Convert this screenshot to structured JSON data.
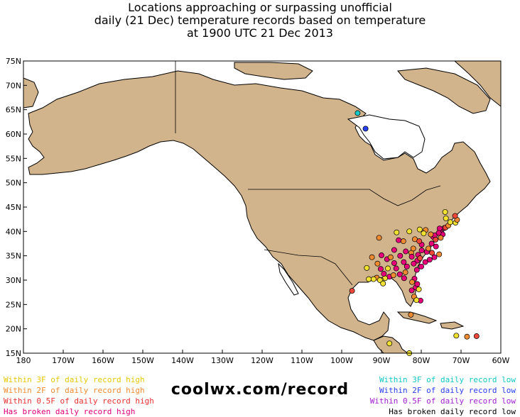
{
  "title": {
    "line1": "Locations approaching or surpassing unofficial",
    "line2": "daily (21 Dec) temperature records based on temperature",
    "line3": "at 1900 UTC 21 Dec 2013"
  },
  "map": {
    "lon_range": [
      -180,
      -60
    ],
    "lat_range": [
      15,
      75
    ],
    "x_ticks": [
      "180",
      "170W",
      "160W",
      "150W",
      "140W",
      "130W",
      "120W",
      "110W",
      "100W",
      "90W",
      "80W",
      "70W",
      "60W"
    ],
    "y_ticks": [
      "15N",
      "20N",
      "25N",
      "30N",
      "35N",
      "40N",
      "45N",
      "50N",
      "55N",
      "60N",
      "65N",
      "70N",
      "75N"
    ],
    "colors": {
      "land": "#d2b48c",
      "water": "#ffffff",
      "within_3f_high": "#f0e030",
      "within_2f_high": "#f08a30",
      "within_05f_high": "#f04838",
      "broken_high": "#e8007a",
      "within_3f_low": "#10c8c8",
      "within_2f_low": "#2840f0"
    },
    "stations": [
      {
        "lon": -96.0,
        "lat": 64.3,
        "cat": "within_3f_low"
      },
      {
        "lon": -94.0,
        "lat": 61.1,
        "cat": "within_2f_low"
      },
      {
        "lon": -82.4,
        "lat": 27.9,
        "cat": "broken_high"
      },
      {
        "lon": -80.2,
        "lat": 25.8,
        "cat": "broken_high"
      },
      {
        "lon": -81.4,
        "lat": 28.5,
        "cat": "broken_high"
      },
      {
        "lon": -81.0,
        "lat": 29.2,
        "cat": "broken_high"
      },
      {
        "lon": -81.7,
        "lat": 30.3,
        "cat": "broken_high"
      },
      {
        "lon": -84.3,
        "lat": 30.4,
        "cat": "broken_high"
      },
      {
        "lon": -82.3,
        "lat": 29.6,
        "cat": "within_2f_high"
      },
      {
        "lon": -80.6,
        "lat": 28.1,
        "cat": "within_3f_high"
      },
      {
        "lon": -81.8,
        "lat": 26.6,
        "cat": "within_2f_high"
      },
      {
        "lon": -81.1,
        "lat": 32.1,
        "cat": "broken_high"
      },
      {
        "lon": -80.0,
        "lat": 32.8,
        "cat": "broken_high"
      },
      {
        "lon": -79.0,
        "lat": 33.7,
        "cat": "broken_high"
      },
      {
        "lon": -77.9,
        "lat": 34.2,
        "cat": "broken_high"
      },
      {
        "lon": -76.7,
        "lat": 34.7,
        "cat": "broken_high"
      },
      {
        "lon": -75.5,
        "lat": 35.3,
        "cat": "within_2f_high"
      },
      {
        "lon": -76.3,
        "lat": 36.9,
        "cat": "broken_high"
      },
      {
        "lon": -77.4,
        "lat": 37.5,
        "cat": "broken_high"
      },
      {
        "lon": -78.6,
        "lat": 35.8,
        "cat": "broken_high"
      },
      {
        "lon": -80.8,
        "lat": 35.2,
        "cat": "broken_high"
      },
      {
        "lon": -79.9,
        "lat": 36.1,
        "cat": "broken_high"
      },
      {
        "lon": -82.5,
        "lat": 35.6,
        "cat": "within_2f_high"
      },
      {
        "lon": -81.0,
        "lat": 34.0,
        "cat": "broken_high"
      },
      {
        "lon": -82.4,
        "lat": 34.8,
        "cat": "broken_high"
      },
      {
        "lon": -84.4,
        "lat": 33.7,
        "cat": "broken_high"
      },
      {
        "lon": -83.6,
        "lat": 32.8,
        "cat": "broken_high"
      },
      {
        "lon": -81.9,
        "lat": 33.4,
        "cat": "broken_high"
      },
      {
        "lon": -86.8,
        "lat": 33.5,
        "cat": "broken_high"
      },
      {
        "lon": -86.3,
        "lat": 32.4,
        "cat": "broken_high"
      },
      {
        "lon": -88.0,
        "lat": 30.7,
        "cat": "broken_high"
      },
      {
        "lon": -89.1,
        "lat": 30.4,
        "cat": "within_3f_high"
      },
      {
        "lon": -90.1,
        "lat": 30.0,
        "cat": "within_3f_high"
      },
      {
        "lon": -90.2,
        "lat": 32.3,
        "cat": "broken_high"
      },
      {
        "lon": -89.4,
        "lat": 31.3,
        "cat": "broken_high"
      },
      {
        "lon": -91.2,
        "lat": 30.5,
        "cat": "within_2f_high"
      },
      {
        "lon": -92.0,
        "lat": 30.2,
        "cat": "within_3f_high"
      },
      {
        "lon": -93.2,
        "lat": 30.2,
        "cat": "within_3f_high"
      },
      {
        "lon": -92.4,
        "lat": 34.7,
        "cat": "within_2f_high"
      },
      {
        "lon": -90.0,
        "lat": 35.1,
        "cat": "broken_high"
      },
      {
        "lon": -86.8,
        "lat": 36.2,
        "cat": "broken_high"
      },
      {
        "lon": -85.3,
        "lat": 35.0,
        "cat": "broken_high"
      },
      {
        "lon": -83.9,
        "lat": 35.9,
        "cat": "broken_high"
      },
      {
        "lon": -88.6,
        "lat": 34.3,
        "cat": "broken_high"
      },
      {
        "lon": -87.7,
        "lat": 34.7,
        "cat": "within_2f_high"
      },
      {
        "lon": -84.5,
        "lat": 38.0,
        "cat": "within_2f_high"
      },
      {
        "lon": -85.7,
        "lat": 38.2,
        "cat": "broken_high"
      },
      {
        "lon": -81.6,
        "lat": 38.4,
        "cat": "within_2f_high"
      },
      {
        "lon": -79.9,
        "lat": 37.3,
        "cat": "broken_high"
      },
      {
        "lon": -77.0,
        "lat": 38.9,
        "cat": "broken_high"
      },
      {
        "lon": -76.6,
        "lat": 39.2,
        "cat": "broken_high"
      },
      {
        "lon": -75.2,
        "lat": 39.9,
        "cat": "broken_high"
      },
      {
        "lon": -74.2,
        "lat": 40.7,
        "cat": "broken_high"
      },
      {
        "lon": -73.9,
        "lat": 40.8,
        "cat": "within_05f_high"
      },
      {
        "lon": -73.2,
        "lat": 41.2,
        "cat": "within_2f_high"
      },
      {
        "lon": -71.4,
        "lat": 41.8,
        "cat": "within_3f_high"
      },
      {
        "lon": -71.0,
        "lat": 42.4,
        "cat": "within_2f_high"
      },
      {
        "lon": -72.7,
        "lat": 41.9,
        "cat": "within_3f_high"
      },
      {
        "lon": -73.8,
        "lat": 42.7,
        "cat": "within_3f_high"
      },
      {
        "lon": -75.4,
        "lat": 40.6,
        "cat": "broken_high"
      },
      {
        "lon": -77.6,
        "lat": 39.4,
        "cat": "within_2f_high"
      },
      {
        "lon": -78.9,
        "lat": 40.3,
        "cat": "within_2f_high"
      },
      {
        "lon": -74.6,
        "lat": 39.4,
        "cat": "broken_high"
      },
      {
        "lon": -75.6,
        "lat": 39.7,
        "cat": "broken_high"
      },
      {
        "lon": -71.5,
        "lat": 43.2,
        "cat": "within_05f_high"
      },
      {
        "lon": -74.0,
        "lat": 44.0,
        "cat": "within_3f_high"
      },
      {
        "lon": -83.0,
        "lat": 40.0,
        "cat": "within_3f_high"
      },
      {
        "lon": -80.4,
        "lat": 40.4,
        "cat": "within_3f_high"
      },
      {
        "lon": -86.2,
        "lat": 39.8,
        "cat": "within_3f_high"
      },
      {
        "lon": -90.6,
        "lat": 38.7,
        "cat": "within_2f_high"
      },
      {
        "lon": -97.4,
        "lat": 27.8,
        "cat": "within_05f_high"
      },
      {
        "lon": -90.4,
        "lat": 30.0,
        "cat": "within_3f_high"
      },
      {
        "lon": -89.6,
        "lat": 29.3,
        "cat": "within_3f_high"
      },
      {
        "lon": -82.6,
        "lat": 22.9,
        "cat": "within_2f_high"
      },
      {
        "lon": -88.0,
        "lat": 17.0,
        "cat": "within_3f_high"
      },
      {
        "lon": -83.0,
        "lat": 15.0,
        "cat": "within_3f_high"
      },
      {
        "lon": -66.1,
        "lat": 18.5,
        "cat": "within_05f_high"
      },
      {
        "lon": -68.5,
        "lat": 18.4,
        "cat": "within_2f_high"
      },
      {
        "lon": -71.2,
        "lat": 18.6,
        "cat": "within_3f_high"
      },
      {
        "lon": -84.0,
        "lat": 31.6,
        "cat": "within_2f_high"
      },
      {
        "lon": -85.4,
        "lat": 31.2,
        "cat": "broken_high"
      },
      {
        "lon": -87.0,
        "lat": 31.0,
        "cat": "within_2f_high"
      },
      {
        "lon": -88.4,
        "lat": 32.4,
        "cat": "within_3f_high"
      },
      {
        "lon": -91.0,
        "lat": 33.4,
        "cat": "within_2f_high"
      },
      {
        "lon": -93.7,
        "lat": 32.5,
        "cat": "within_3f_high"
      },
      {
        "lon": -80.3,
        "lat": 34.5,
        "cat": "within_05f_high"
      },
      {
        "lon": -77.3,
        "lat": 35.6,
        "cat": "within_05f_high"
      },
      {
        "lon": -78.2,
        "lat": 36.5,
        "cat": "within_2f_high"
      },
      {
        "lon": -80.5,
        "lat": 38.0,
        "cat": "within_05f_high"
      },
      {
        "lon": -82.0,
        "lat": 36.5,
        "cat": "within_2f_high"
      },
      {
        "lon": -76.4,
        "lat": 38.3,
        "cat": "within_05f_high"
      },
      {
        "lon": -75.1,
        "lat": 38.7,
        "cat": "within_2f_high"
      },
      {
        "lon": -79.4,
        "lat": 39.6,
        "cat": "within_3f_high"
      },
      {
        "lon": -81.2,
        "lat": 25.9,
        "cat": "within_3f_high"
      }
    ]
  },
  "legend": {
    "left": [
      {
        "label": "Within 3F of daily record high",
        "color": "#e6c800"
      },
      {
        "label": "Within 2F of daily record high",
        "color": "#f08a30"
      },
      {
        "label": "Within 0.5F of daily record high",
        "color": "#e83030"
      },
      {
        "label": "Has broken daily record high",
        "color": "#e0007a"
      }
    ],
    "right": [
      {
        "label": "Within 3F of daily record low",
        "color": "#10c8c8"
      },
      {
        "label": "Within 2F of daily record low",
        "color": "#2840f0"
      },
      {
        "label": "Within 0.5F of daily record low",
        "color": "#a020d0"
      },
      {
        "label": "Has broken daily record low",
        "color": "#000000"
      }
    ]
  },
  "brand": "coolwx.com/record"
}
